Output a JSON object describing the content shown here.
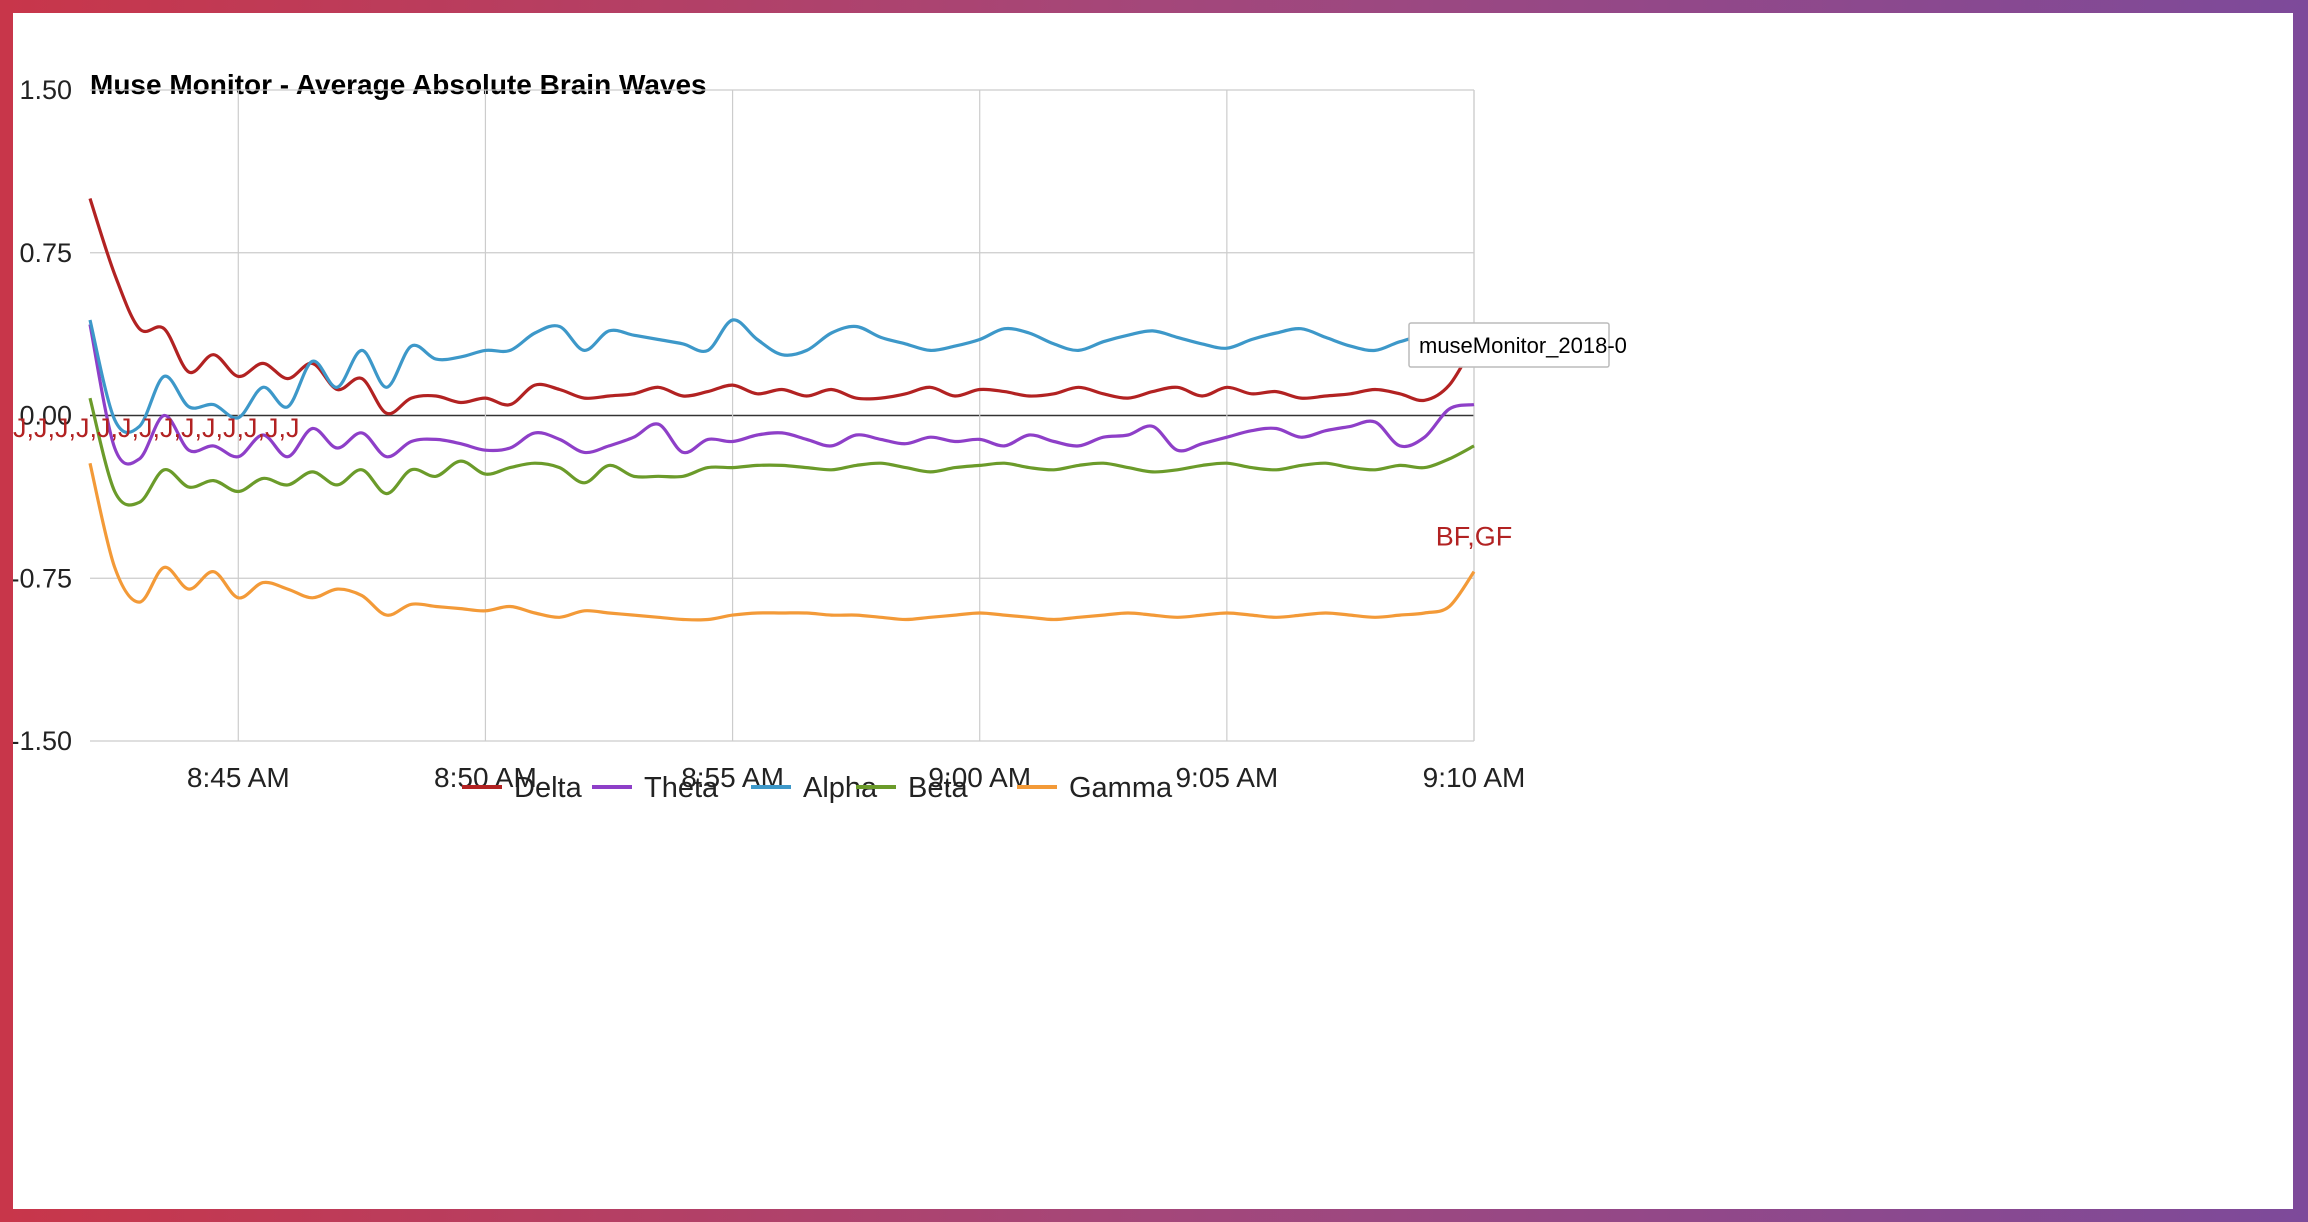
{
  "chart_data": {
    "type": "line",
    "title": "Muse Monitor - Average Absolute Brain Waves",
    "xlabel": "",
    "ylabel": "",
    "ylim": [
      -1.5,
      1.5
    ],
    "yticks": [
      "1.50",
      "0.75",
      "0.00",
      "-0.75",
      "-1.50"
    ],
    "ytick_values": [
      1.5,
      0.75,
      0,
      -0.75,
      -1.5
    ],
    "xlim": [
      0,
      28
    ],
    "xticks": [
      "8:45 AM",
      "8:50 AM",
      "8:55 AM",
      "9:00 AM",
      "9:05 AM",
      "9:10 AM"
    ],
    "xtick_values": [
      3,
      8,
      13,
      18,
      23,
      28
    ],
    "x": [
      0,
      0.5,
      1,
      1.5,
      2,
      2.5,
      3,
      3.5,
      4,
      4.5,
      5,
      5.5,
      6,
      6.5,
      7,
      7.5,
      8,
      8.5,
      9,
      9.5,
      10,
      10.5,
      11,
      11.5,
      12,
      12.5,
      13,
      13.5,
      14,
      14.5,
      15,
      15.5,
      16,
      16.5,
      17,
      17.5,
      18,
      18.5,
      19,
      19.5,
      20,
      20.5,
      21,
      21.5,
      22,
      22.5,
      23,
      23.5,
      24,
      24.5,
      25,
      25.5,
      26,
      26.5,
      27,
      27.5,
      28
    ],
    "x_unit": "minutes after 8:42 AM",
    "grid": true,
    "legend_position": "bottom",
    "series": [
      {
        "name": "Delta",
        "color": "#b22222",
        "values": [
          1.0,
          0.65,
          0.4,
          0.4,
          0.2,
          0.28,
          0.18,
          0.24,
          0.17,
          0.24,
          0.12,
          0.17,
          0.01,
          0.08,
          0.09,
          0.06,
          0.08,
          0.05,
          0.14,
          0.12,
          0.08,
          0.09,
          0.1,
          0.13,
          0.09,
          0.11,
          0.14,
          0.1,
          0.12,
          0.09,
          0.12,
          0.08,
          0.08,
          0.1,
          0.13,
          0.09,
          0.12,
          0.11,
          0.09,
          0.1,
          0.13,
          0.1,
          0.08,
          0.11,
          0.13,
          0.09,
          0.13,
          0.1,
          0.11,
          0.08,
          0.09,
          0.1,
          0.12,
          0.1,
          0.07,
          0.14,
          0.33
        ]
      },
      {
        "name": "Theta",
        "color": "#8e3fc8",
        "values": [
          0.42,
          -0.15,
          -0.2,
          0.0,
          -0.16,
          -0.14,
          -0.19,
          -0.09,
          -0.19,
          -0.06,
          -0.15,
          -0.08,
          -0.19,
          -0.12,
          -0.11,
          -0.13,
          -0.16,
          -0.15,
          -0.08,
          -0.11,
          -0.17,
          -0.14,
          -0.1,
          -0.04,
          -0.17,
          -0.11,
          -0.12,
          -0.09,
          -0.08,
          -0.11,
          -0.14,
          -0.09,
          -0.11,
          -0.13,
          -0.1,
          -0.12,
          -0.11,
          -0.14,
          -0.09,
          -0.12,
          -0.14,
          -0.1,
          -0.09,
          -0.05,
          -0.16,
          -0.13,
          -0.1,
          -0.07,
          -0.06,
          -0.1,
          -0.07,
          -0.05,
          -0.03,
          -0.14,
          -0.1,
          0.03,
          0.05
        ]
      },
      {
        "name": "Alpha",
        "color": "#3d98c9",
        "values": [
          0.44,
          -0.02,
          -0.05,
          0.18,
          0.04,
          0.05,
          -0.01,
          0.13,
          0.04,
          0.25,
          0.13,
          0.3,
          0.13,
          0.32,
          0.26,
          0.27,
          0.3,
          0.3,
          0.38,
          0.41,
          0.3,
          0.39,
          0.37,
          0.35,
          0.33,
          0.3,
          0.44,
          0.35,
          0.28,
          0.3,
          0.38,
          0.41,
          0.36,
          0.33,
          0.3,
          0.32,
          0.35,
          0.4,
          0.38,
          0.33,
          0.3,
          0.34,
          0.37,
          0.39,
          0.36,
          0.33,
          0.31,
          0.35,
          0.38,
          0.4,
          0.36,
          0.32,
          0.3,
          0.34,
          0.36,
          0.29,
          0.26
        ]
      },
      {
        "name": "Beta",
        "color": "#6b9b2a",
        "values": [
          0.08,
          -0.35,
          -0.4,
          -0.25,
          -0.33,
          -0.3,
          -0.35,
          -0.29,
          -0.32,
          -0.26,
          -0.32,
          -0.25,
          -0.36,
          -0.25,
          -0.28,
          -0.21,
          -0.27,
          -0.24,
          -0.22,
          -0.24,
          -0.31,
          -0.23,
          -0.28,
          -0.28,
          -0.28,
          -0.24,
          -0.24,
          -0.23,
          -0.23,
          -0.24,
          -0.25,
          -0.23,
          -0.22,
          -0.24,
          -0.26,
          -0.24,
          -0.23,
          -0.22,
          -0.24,
          -0.25,
          -0.23,
          -0.22,
          -0.24,
          -0.26,
          -0.25,
          -0.23,
          -0.22,
          -0.24,
          -0.25,
          -0.23,
          -0.22,
          -0.24,
          -0.25,
          -0.23,
          -0.24,
          -0.2,
          -0.14
        ]
      },
      {
        "name": "Gamma",
        "color": "#f39a38",
        "values": [
          -0.22,
          -0.7,
          -0.86,
          -0.7,
          -0.8,
          -0.72,
          -0.84,
          -0.77,
          -0.8,
          -0.84,
          -0.8,
          -0.83,
          -0.92,
          -0.87,
          -0.88,
          -0.89,
          -0.9,
          -0.88,
          -0.91,
          -0.93,
          -0.9,
          -0.91,
          -0.92,
          -0.93,
          -0.94,
          -0.94,
          -0.92,
          -0.91,
          -0.91,
          -0.91,
          -0.92,
          -0.92,
          -0.93,
          -0.94,
          -0.93,
          -0.92,
          -0.91,
          -0.92,
          -0.93,
          -0.94,
          -0.93,
          -0.92,
          -0.91,
          -0.92,
          -0.93,
          -0.92,
          -0.91,
          -0.92,
          -0.93,
          -0.92,
          -0.91,
          -0.92,
          -0.93,
          -0.92,
          -0.91,
          -0.88,
          -0.72
        ]
      }
    ],
    "annotations": [
      {
        "text": "J,J,J,J,J,J,J,J,J,J,J,J,J,J",
        "x": 0,
        "y": -0.1,
        "color": "#b22222"
      },
      {
        "text": "BF,GF",
        "x": 28,
        "y": -0.6,
        "color": "#b22222"
      }
    ],
    "tooltip": "museMonitor_2018-0"
  }
}
